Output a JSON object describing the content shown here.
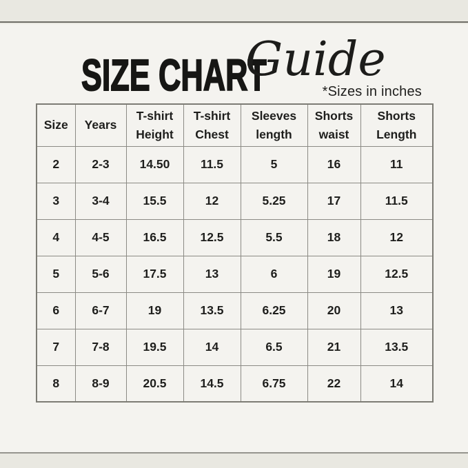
{
  "header": {
    "title_main": "SIZE CHART",
    "title_script": "Guide",
    "note": "*Sizes in inches"
  },
  "colors": {
    "background_band": "#e9e8e1",
    "background_panel": "#f4f3ef",
    "text": "#1e1e1c",
    "table_border": "#8b8a84"
  },
  "chart_data": {
    "type": "table",
    "title": "SIZE CHART Guide",
    "note": "*Sizes in inches",
    "units": "inches",
    "columns": [
      "Size",
      "Years",
      "T-shirt Height",
      "T-shirt Chest",
      "Sleeves length",
      "Shorts waist",
      "Shorts Length"
    ],
    "rows": [
      [
        "2",
        "2-3",
        "14.50",
        "11.5",
        "5",
        "16",
        "11"
      ],
      [
        "3",
        "3-4",
        "15.5",
        "12",
        "5.25",
        "17",
        "11.5"
      ],
      [
        "4",
        "4-5",
        "16.5",
        "12.5",
        "5.5",
        "18",
        "12"
      ],
      [
        "5",
        "5-6",
        "17.5",
        "13",
        "6",
        "19",
        "12.5"
      ],
      [
        "6",
        "6-7",
        "19",
        "13.5",
        "6.25",
        "20",
        "13"
      ],
      [
        "7",
        "7-8",
        "19.5",
        "14",
        "6.5",
        "21",
        "13.5"
      ],
      [
        "8",
        "8-9",
        "20.5",
        "14.5",
        "6.75",
        "22",
        "14"
      ]
    ]
  }
}
